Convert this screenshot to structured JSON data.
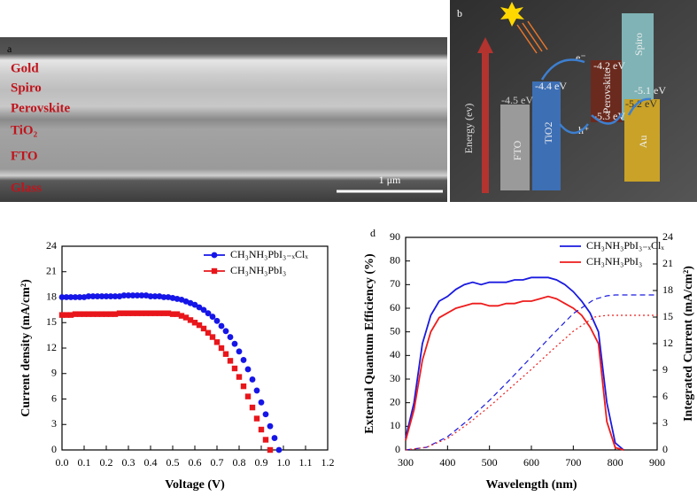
{
  "panel_a": {
    "letter": "a",
    "layers": [
      "Gold",
      "Spiro",
      "Perovskite",
      "TiO₂",
      "FTO",
      "Glass"
    ],
    "scale_bar": "1 μm"
  },
  "panel_b": {
    "letter": "b",
    "axis": "Energy (ev)",
    "materials": [
      "FTO",
      "TiO2",
      "Perovskite",
      "Spiro",
      "Au"
    ],
    "levels": [
      "-4.5 eV",
      "-4.4 eV",
      "-4.2 eV",
      "-5.3 eV",
      "-5.2 eV",
      "-5.1 eV"
    ],
    "carriers": [
      "e⁻",
      "h⁺"
    ]
  },
  "chart_data": [
    {
      "type": "scatter",
      "xlabel": "Voltage (V)",
      "ylabel": "Current density (mA/cm²)",
      "xlim": [
        0,
        1.2
      ],
      "xticks": [
        {
          "value": 0,
          "label": "0.0"
        },
        0.1,
        0.2,
        0.3,
        0.4,
        0.5,
        0.6,
        0.7,
        0.8,
        0.9,
        {
          "value": 1,
          "label": "1.0"
        },
        1.1,
        1.2
      ],
      "ylim": [
        0,
        24
      ],
      "yticks": [
        0,
        3,
        6,
        9,
        12,
        15,
        18,
        21,
        24
      ],
      "legend": "upper right",
      "series": [
        {
          "name": "CH₃NH₃PbI₃₋ₓClₓ",
          "color": "#1515e8",
          "marker": "circle",
          "x": [
            0,
            0.02,
            0.04,
            0.06,
            0.08,
            0.1,
            0.12,
            0.14,
            0.16,
            0.18,
            0.2,
            0.22,
            0.24,
            0.26,
            0.28,
            0.3,
            0.32,
            0.34,
            0.36,
            0.38,
            0.4,
            0.42,
            0.44,
            0.46,
            0.48,
            0.5,
            0.52,
            0.54,
            0.56,
            0.58,
            0.6,
            0.62,
            0.64,
            0.66,
            0.68,
            0.7,
            0.72,
            0.74,
            0.76,
            0.78,
            0.8,
            0.82,
            0.84,
            0.86,
            0.88,
            0.9,
            0.92,
            0.94,
            0.96,
            0.98
          ],
          "values": [
            18.0,
            18.0,
            18.0,
            18.0,
            18.0,
            18.0,
            18.1,
            18.1,
            18.1,
            18.1,
            18.1,
            18.1,
            18.1,
            18.1,
            18.2,
            18.2,
            18.2,
            18.2,
            18.2,
            18.2,
            18.1,
            18.1,
            18.1,
            18.0,
            18.0,
            17.9,
            17.8,
            17.7,
            17.5,
            17.3,
            17.1,
            16.8,
            16.5,
            16.1,
            15.7,
            15.2,
            14.6,
            14.0,
            13.3,
            12.5,
            11.6,
            10.6,
            9.5,
            8.3,
            7.0,
            5.6,
            4.2,
            2.8,
            1.4,
            0
          ]
        },
        {
          "name": "CH₃NH₃PbI₃",
          "color": "#e8161b",
          "marker": "square",
          "x": [
            0,
            0.02,
            0.04,
            0.06,
            0.08,
            0.1,
            0.12,
            0.14,
            0.16,
            0.18,
            0.2,
            0.22,
            0.24,
            0.26,
            0.28,
            0.3,
            0.32,
            0.34,
            0.36,
            0.38,
            0.4,
            0.42,
            0.44,
            0.46,
            0.48,
            0.5,
            0.52,
            0.54,
            0.56,
            0.58,
            0.6,
            0.62,
            0.64,
            0.66,
            0.68,
            0.7,
            0.72,
            0.74,
            0.76,
            0.78,
            0.8,
            0.82,
            0.84,
            0.86,
            0.88,
            0.9,
            0.92,
            0.94
          ],
          "values": [
            15.9,
            15.9,
            15.9,
            16.0,
            16.0,
            16.0,
            16.0,
            16.0,
            16.0,
            16.0,
            16.0,
            16.0,
            16.0,
            16.1,
            16.1,
            16.1,
            16.1,
            16.1,
            16.1,
            16.1,
            16.1,
            16.1,
            16.1,
            16.1,
            16.1,
            16.0,
            16.0,
            15.8,
            15.6,
            15.3,
            15.0,
            14.7,
            14.3,
            13.8,
            13.3,
            12.7,
            12.0,
            11.3,
            10.5,
            9.6,
            8.6,
            7.5,
            6.3,
            5.0,
            3.7,
            2.4,
            1.2,
            0
          ]
        }
      ]
    },
    {
      "type": "line",
      "panel_label": "d",
      "xlabel": "Wavelength (nm)",
      "ylabel": "External Quantum Efficiency (%)",
      "y2label": "Integrated Current (mA/cm²)",
      "xlim": [
        300,
        900
      ],
      "xticks": [
        300,
        400,
        500,
        600,
        700,
        800,
        900
      ],
      "ylim": [
        0,
        90
      ],
      "yticks": [
        0,
        10,
        20,
        30,
        40,
        50,
        60,
        70,
        80,
        90
      ],
      "y2lim": [
        0,
        24
      ],
      "y2ticks": [
        0,
        3,
        6,
        9,
        12,
        15,
        18,
        21,
        24
      ],
      "legend": "upper right",
      "series": [
        {
          "name": "CH₃NH₃PbI₃₋ₓClₓ",
          "color": "#1a1ae0",
          "dash": "solid",
          "x": [
            300,
            320,
            340,
            360,
            380,
            400,
            420,
            440,
            460,
            480,
            500,
            520,
            540,
            560,
            580,
            600,
            620,
            640,
            660,
            680,
            700,
            720,
            740,
            760,
            780,
            800,
            820
          ],
          "values": [
            5,
            20,
            45,
            57,
            63,
            65,
            68,
            70,
            71,
            70,
            71,
            71,
            71,
            72,
            72,
            73,
            73,
            73,
            72,
            70,
            67,
            63,
            58,
            50,
            20,
            3,
            0
          ]
        },
        {
          "name": "CH₃NH₃PbI₃",
          "color": "#ee1c1c",
          "dash": "solid",
          "x": [
            300,
            320,
            340,
            360,
            380,
            400,
            420,
            440,
            460,
            480,
            500,
            520,
            540,
            560,
            580,
            600,
            620,
            640,
            660,
            680,
            700,
            720,
            740,
            760,
            780,
            800,
            820
          ],
          "values": [
            4,
            17,
            38,
            50,
            56,
            58,
            60,
            61,
            62,
            62,
            61,
            61,
            62,
            62,
            63,
            63,
            64,
            65,
            64,
            62,
            60,
            57,
            52,
            45,
            12,
            1,
            0
          ]
        },
        {
          "color": "#1a1ae0",
          "dash": "dashed",
          "axis": "y2",
          "x": [
            300,
            350,
            400,
            450,
            500,
            550,
            600,
            650,
            700,
            750,
            780,
            800,
            900
          ],
          "values": [
            0,
            0.3,
            1.5,
            3.4,
            5.6,
            8.0,
            10.5,
            13.0,
            15.4,
            17.0,
            17.4,
            17.5,
            17.5
          ]
        },
        {
          "color": "#ee1c1c",
          "dash": "dotted",
          "axis": "y2",
          "x": [
            300,
            350,
            400,
            450,
            500,
            550,
            600,
            650,
            700,
            750,
            780,
            800,
            900
          ],
          "values": [
            0,
            0.3,
            1.3,
            3.0,
            4.9,
            7.0,
            9.1,
            11.3,
            13.4,
            15.0,
            15.2,
            15.2,
            15.2
          ]
        }
      ]
    }
  ]
}
